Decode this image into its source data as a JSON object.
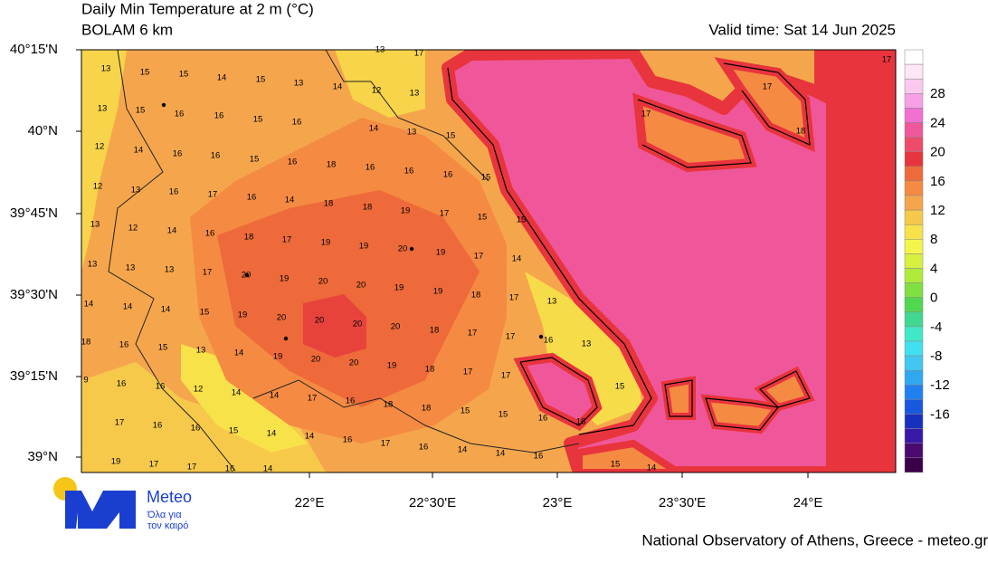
{
  "header": {
    "title": "Daily Min Temperature at 2 m (°C)",
    "model": "BOLAM 6 km",
    "valid": "Valid time: Sat 14 Jun 2025"
  },
  "axes": {
    "lat": [
      "40°15'N",
      "40°N",
      "39°45'N",
      "39°30'N",
      "39°15'N",
      "39°N"
    ],
    "lon": [
      "22°E",
      "22°30'E",
      "23°E",
      "23°30'E",
      "24°E"
    ]
  },
  "colorbar": {
    "ticks": [
      28,
      24,
      20,
      16,
      12,
      8,
      4,
      0,
      -4,
      -8,
      -12,
      -16
    ]
  },
  "labels": [
    13,
    15,
    15,
    14,
    15,
    13,
    13,
    15,
    16,
    16,
    15,
    16,
    12,
    14,
    16,
    16,
    15,
    16,
    18,
    16,
    16,
    16,
    15,
    12,
    13,
    16,
    17,
    16,
    14,
    18,
    18,
    19,
    17,
    15,
    15,
    13,
    12,
    14,
    16,
    18,
    17,
    19,
    19,
    20,
    19,
    17,
    14,
    13,
    13,
    13,
    17,
    20,
    19,
    20,
    20,
    19,
    19,
    18,
    17,
    13,
    14,
    14,
    14,
    15,
    19,
    20,
    20,
    20,
    20,
    18,
    17,
    17,
    16,
    13,
    18,
    16,
    15,
    13,
    14,
    19,
    20,
    20,
    19,
    18,
    17,
    17,
    9,
    16,
    16,
    12,
    14,
    14,
    17,
    16,
    18,
    18,
    15,
    15,
    16,
    16,
    15,
    17,
    16,
    16,
    15,
    14,
    14,
    16,
    17,
    16,
    14,
    14,
    16,
    19,
    17,
    17,
    16,
    14,
    15,
    14,
    17,
    17,
    18,
    17,
    17,
    13,
    14,
    12,
    13,
    14,
    13,
    15
  ],
  "logo": {
    "name": "Meteo",
    "line1": "Όλα για",
    "line2": "τον καιρό"
  },
  "footer": "National Observatory of Athens, Greece - meteo.gr"
}
